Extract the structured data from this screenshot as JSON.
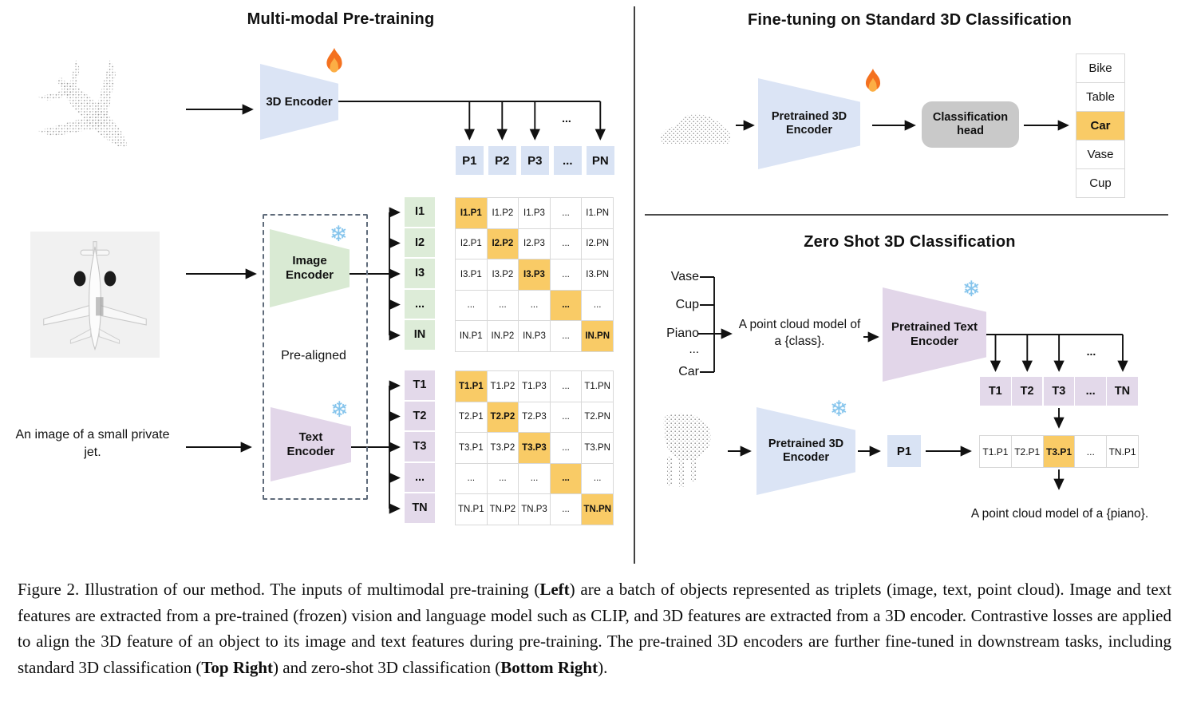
{
  "ellipsis": "...",
  "icons": {
    "trainable": "fire-icon",
    "frozen": "snowflake-icon"
  },
  "left": {
    "title": "Multi-modal Pre-training",
    "encoder_3d_label": "3D Encoder",
    "image_encoder_label": "Image Encoder",
    "text_encoder_label": "Text Encoder",
    "prealigned_label": "Pre-aligned",
    "text_input": "An image of a small private jet.",
    "p_row": [
      "P1",
      "P2",
      "P3",
      "...",
      "PN"
    ],
    "i_col": [
      "I1",
      "I2",
      "I3",
      "...",
      "IN"
    ],
    "t_col": [
      "T1",
      "T2",
      "T3",
      "...",
      "TN"
    ],
    "i_matrix": [
      [
        "I1.P1",
        "I1.P2",
        "I1.P3",
        "...",
        "I1.PN"
      ],
      [
        "I2.P1",
        "I2.P2",
        "I2.P3",
        "...",
        "I2.PN"
      ],
      [
        "I3.P1",
        "I3.P2",
        "I3.P3",
        "...",
        "I3.PN"
      ],
      [
        "...",
        "...",
        "...",
        "...",
        "..."
      ],
      [
        "IN.P1",
        "IN.P2",
        "IN.P3",
        "...",
        "IN.PN"
      ]
    ],
    "t_matrix": [
      [
        "T1.P1",
        "T1.P2",
        "T1.P3",
        "...",
        "T1.PN"
      ],
      [
        "T2.P1",
        "T2.P2",
        "T2.P3",
        "...",
        "T2.PN"
      ],
      [
        "T3.P1",
        "T3.P2",
        "T3.P3",
        "...",
        "T3.PN"
      ],
      [
        "...",
        "...",
        "...",
        "...",
        "..."
      ],
      [
        "TN.P1",
        "TN.P2",
        "TN.P3",
        "...",
        "TN.PN"
      ]
    ]
  },
  "top_right": {
    "title": "Fine-tuning on Standard 3D Classification",
    "encoder_label": "Pretrained 3D Encoder",
    "head_label": "Classification head",
    "classes": [
      "Bike",
      "Table",
      "Car",
      "Vase",
      "Cup"
    ],
    "predicted_class": "Car"
  },
  "bottom_right": {
    "title": "Zero Shot 3D Classification",
    "candidate_classes": [
      "Vase",
      "Cup",
      "Piano",
      "...",
      "Car"
    ],
    "prompt": "A point cloud model of a {class}.",
    "text_encoder_label": "Pretrained Text Encoder",
    "t_row": [
      "T1",
      "T2",
      "T3",
      "...",
      "TN"
    ],
    "encoder_3d_label": "Pretrained 3D Encoder",
    "p_cell": "P1",
    "similarity_row": [
      "T1.P1",
      "T2.P1",
      "T3.P1",
      "...",
      "TN.P1"
    ],
    "predicted_similarity": "T3.P1",
    "result_prompt": "A point cloud model of a {piano}."
  },
  "caption": {
    "segments": [
      {
        "t": "Figure 2. Illustration of our method. The inputs of multimodal pre-training (",
        "b": false
      },
      {
        "t": "Left",
        "b": true
      },
      {
        "t": ") are a batch of objects represented as triplets (image, text, point cloud).  Image and text features are extracted from a pre-trained (frozen) vision and language model such as CLIP, and 3D features are extracted from a 3D encoder.  Contrastive losses are applied to align the 3D feature of an object to its image and text features during pre-training.  The pre-trained 3D encoders are further fine-tuned in downstream tasks, including standard 3D classification (",
        "b": false
      },
      {
        "t": "Top Right",
        "b": true
      },
      {
        "t": ") and zero-shot 3D classification (",
        "b": false
      },
      {
        "t": "Bottom Right",
        "b": true
      },
      {
        "t": ").",
        "b": false
      }
    ]
  }
}
